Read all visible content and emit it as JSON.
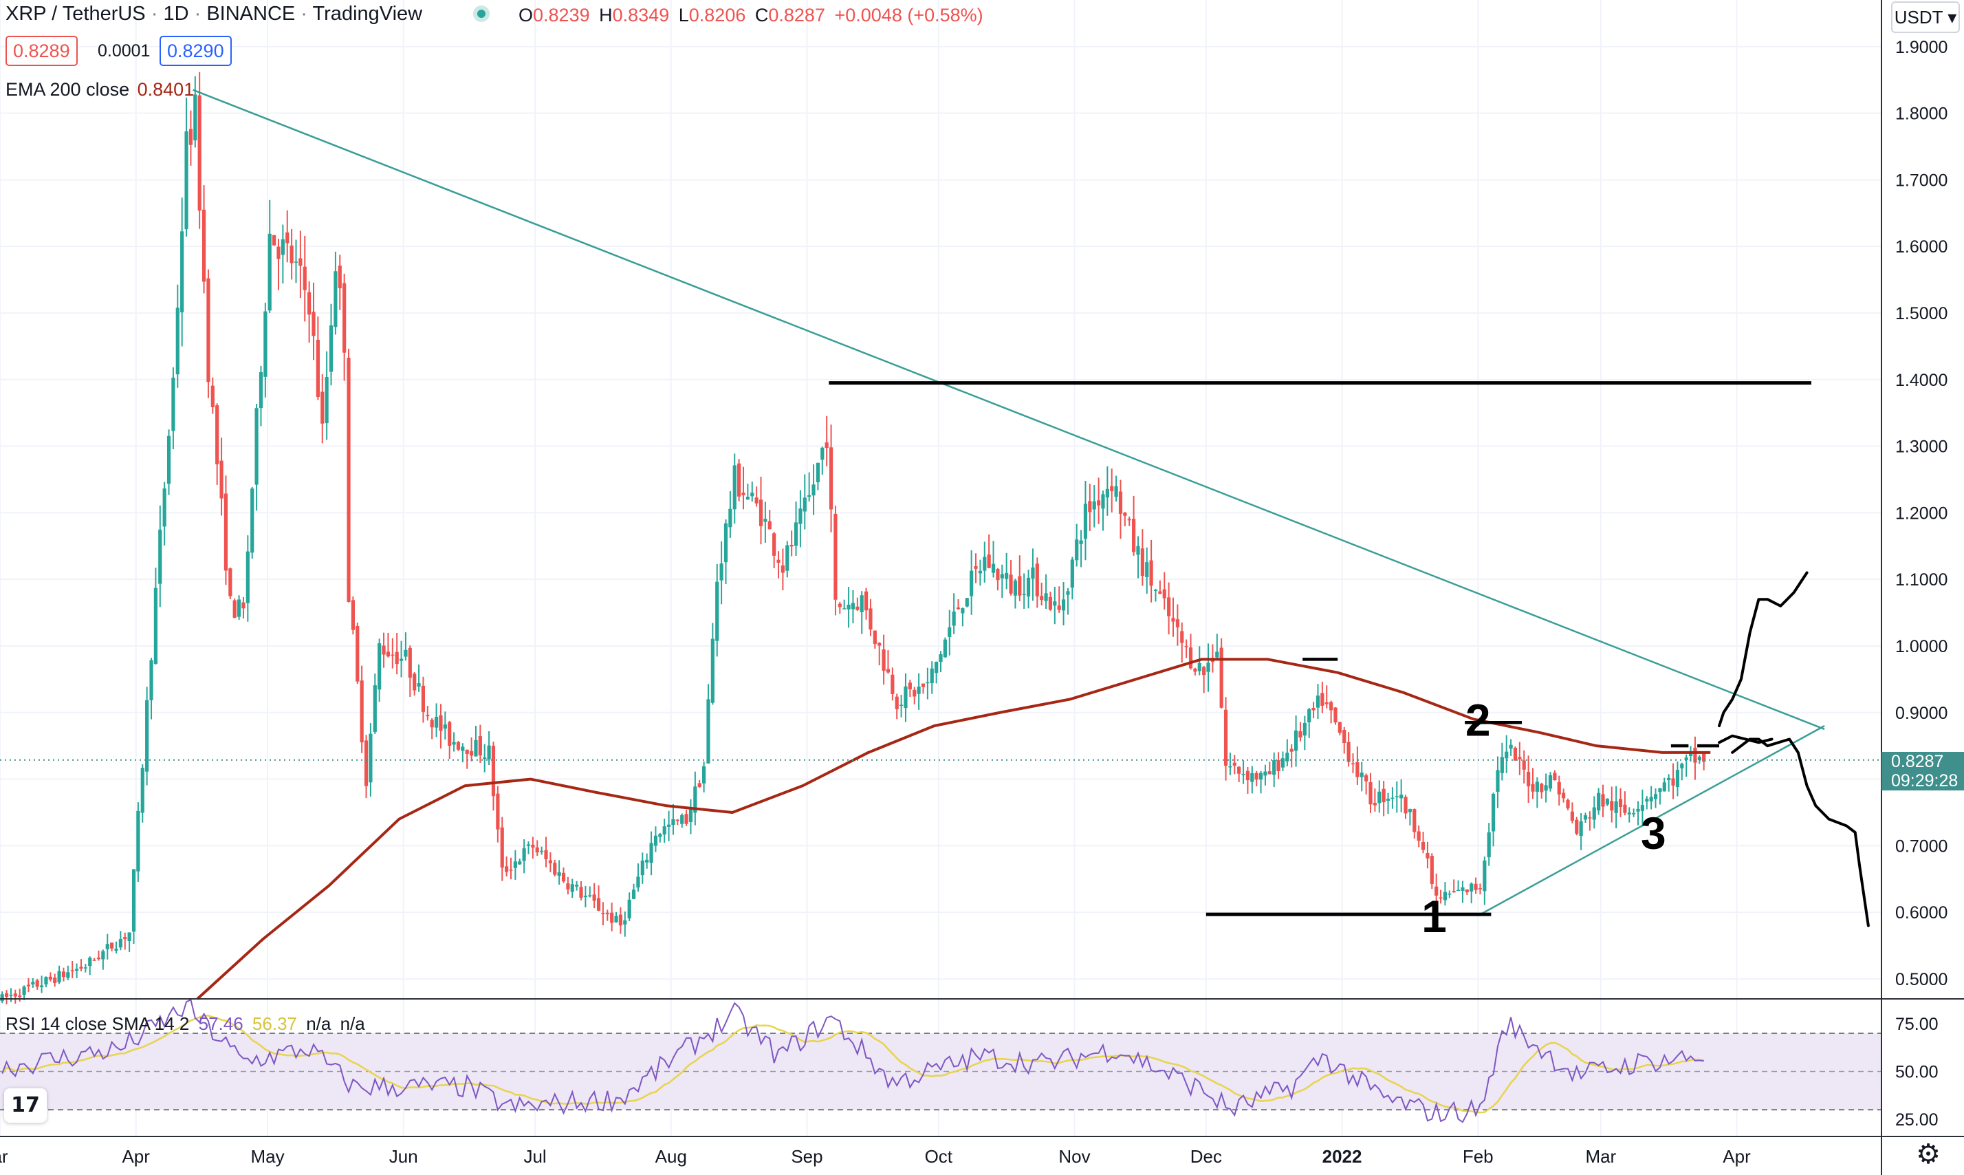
{
  "header": {
    "symbol": "XRP / TetherUS",
    "interval": "1D",
    "exchange": "BINANCE",
    "platform": "TradingView",
    "dot_sep": "·",
    "ohlc": [
      {
        "key": "O",
        "value": "0.8239"
      },
      {
        "key": "H",
        "value": "0.8349"
      },
      {
        "key": "L",
        "value": "0.8206"
      },
      {
        "key": "C",
        "value": "0.8287"
      }
    ],
    "change": "+0.0048 (+0.58%)"
  },
  "quote": {
    "bid": "0.8289",
    "spread": "0.0001",
    "ask": "0.8290"
  },
  "ema": {
    "label": "EMA 200 close",
    "value": "0.8401"
  },
  "rsi": {
    "label": "RSI 14 close SMA 14 2",
    "value": "57.46",
    "sma": "56.37",
    "na1": "n/a",
    "na2": "n/a"
  },
  "currency_select": "USDT ▾",
  "last_price": {
    "value": "0.8287",
    "countdown": "09:29:28"
  },
  "colors": {
    "up": "#26a69a",
    "down": "#ef5350",
    "ema": "#a52714",
    "trend": "#3a9e96",
    "rsi": "#7e57c2",
    "rsi_sma": "#e8d44d",
    "rsi_band": "#ede7f6",
    "grid": "#f0f3fa"
  },
  "icons": {
    "logo": "tradingview-logo-icon",
    "settings": "gear-icon",
    "quote_status": "market-open-dot-icon"
  },
  "logo_text": "17",
  "chart_data": {
    "type": "candlestick",
    "x_axis": {
      "labels": [
        "ar",
        "Apr",
        "May",
        "Jun",
        "Jul",
        "Aug",
        "Sep",
        "Oct",
        "Nov",
        "Dec",
        "2022",
        "Feb",
        "Mar",
        "Apr"
      ],
      "dates": [
        "2021-03-01",
        "2021-04-01",
        "2021-05-01",
        "2021-06-01",
        "2021-07-01",
        "2021-08-01",
        "2021-09-01",
        "2021-10-01",
        "2021-11-01",
        "2021-12-01",
        "2022-01-01",
        "2022-02-01",
        "2022-03-01",
        "2022-04-01"
      ],
      "range": [
        "2021-03-01",
        "2022-05-04"
      ]
    },
    "y_axis": {
      "ticks": [
        0.5,
        0.6,
        0.7,
        0.8,
        0.9,
        1.0,
        1.1,
        1.2,
        1.3,
        1.4,
        1.5,
        1.6,
        1.7,
        1.8,
        1.9
      ],
      "tick_labels": [
        "0.5000",
        "0.6000",
        "0.7000",
        "0.8000",
        "0.9000",
        "1.0000",
        "1.1000",
        "1.2000",
        "1.3000",
        "1.4000",
        "1.5000",
        "1.6000",
        "1.7000",
        "1.8000",
        "1.9000"
      ],
      "range": [
        0.47,
        1.97
      ]
    },
    "price_anchors": [
      [
        "2021-03-01",
        0.47
      ],
      [
        "2021-03-20",
        0.52
      ],
      [
        "2021-03-30",
        0.57
      ],
      [
        "2021-04-05",
        1.08
      ],
      [
        "2021-04-09",
        1.4
      ],
      [
        "2021-04-12",
        1.75
      ],
      [
        "2021-04-14",
        1.8
      ],
      [
        "2021-04-17",
        1.42
      ],
      [
        "2021-04-22",
        1.06
      ],
      [
        "2021-04-25",
        1.05
      ],
      [
        "2021-05-01",
        1.62
      ],
      [
        "2021-05-06",
        1.58
      ],
      [
        "2021-05-10",
        1.52
      ],
      [
        "2021-05-13",
        1.32
      ],
      [
        "2021-05-16",
        1.58
      ],
      [
        "2021-05-18",
        1.46
      ],
      [
        "2021-05-19",
        1.08
      ],
      [
        "2021-05-23",
        0.8
      ],
      [
        "2021-05-26",
        1.0
      ],
      [
        "2021-06-01",
        0.98
      ],
      [
        "2021-06-06",
        0.9
      ],
      [
        "2021-06-11",
        0.86
      ],
      [
        "2021-06-20",
        0.84
      ],
      [
        "2021-06-23",
        0.66
      ],
      [
        "2021-06-30",
        0.7
      ],
      [
        "2021-07-07",
        0.65
      ],
      [
        "2021-07-20",
        0.58
      ],
      [
        "2021-07-28",
        0.72
      ],
      [
        "2021-08-04",
        0.74
      ],
      [
        "2021-08-08",
        0.82
      ],
      [
        "2021-08-11",
        1.1
      ],
      [
        "2021-08-15",
        1.25
      ],
      [
        "2021-08-21",
        1.2
      ],
      [
        "2021-08-26",
        1.12
      ],
      [
        "2021-09-01",
        1.22
      ],
      [
        "2021-09-05",
        1.32
      ],
      [
        "2021-09-07",
        1.06
      ],
      [
        "2021-09-13",
        1.07
      ],
      [
        "2021-09-21",
        0.92
      ],
      [
        "2021-09-28",
        0.94
      ],
      [
        "2021-10-05",
        1.06
      ],
      [
        "2021-10-11",
        1.13
      ],
      [
        "2021-10-17",
        1.09
      ],
      [
        "2021-10-22",
        1.1
      ],
      [
        "2021-10-28",
        1.05
      ],
      [
        "2021-11-03",
        1.2
      ],
      [
        "2021-11-09",
        1.25
      ],
      [
        "2021-11-14",
        1.15
      ],
      [
        "2021-11-20",
        1.07
      ],
      [
        "2021-11-26",
        0.99
      ],
      [
        "2021-11-30",
        0.96
      ],
      [
        "2021-12-03",
        1.0
      ],
      [
        "2021-12-05",
        0.82
      ],
      [
        "2021-12-14",
        0.8
      ],
      [
        "2021-12-20",
        0.85
      ],
      [
        "2021-12-27",
        0.92
      ],
      [
        "2022-01-02",
        0.84
      ],
      [
        "2022-01-07",
        0.77
      ],
      [
        "2022-01-13",
        0.78
      ],
      [
        "2022-01-18",
        0.72
      ],
      [
        "2022-01-22",
        0.62
      ],
      [
        "2022-02-01",
        0.64
      ],
      [
        "2022-02-05",
        0.82
      ],
      [
        "2022-02-08",
        0.84
      ],
      [
        "2022-02-13",
        0.79
      ],
      [
        "2022-02-18",
        0.8
      ],
      [
        "2022-02-23",
        0.72
      ],
      [
        "2022-02-28",
        0.77
      ],
      [
        "2022-03-06",
        0.75
      ],
      [
        "2022-03-12",
        0.78
      ],
      [
        "2022-03-17",
        0.8
      ],
      [
        "2022-03-21",
        0.83
      ],
      [
        "2022-03-24",
        0.83
      ]
    ],
    "ema_points": [
      [
        "2021-04-15",
        0.47
      ],
      [
        "2021-04-30",
        0.56
      ],
      [
        "2021-05-15",
        0.64
      ],
      [
        "2021-05-31",
        0.74
      ],
      [
        "2021-06-15",
        0.79
      ],
      [
        "2021-06-30",
        0.8
      ],
      [
        "2021-07-15",
        0.78
      ],
      [
        "2021-07-31",
        0.76
      ],
      [
        "2021-08-15",
        0.75
      ],
      [
        "2021-08-31",
        0.79
      ],
      [
        "2021-09-15",
        0.84
      ],
      [
        "2021-09-30",
        0.88
      ],
      [
        "2021-10-15",
        0.9
      ],
      [
        "2021-10-31",
        0.92
      ],
      [
        "2021-11-15",
        0.95
      ],
      [
        "2021-11-30",
        0.98
      ],
      [
        "2021-12-15",
        0.98
      ],
      [
        "2021-12-31",
        0.96
      ],
      [
        "2022-01-15",
        0.93
      ],
      [
        "2022-01-31",
        0.89
      ],
      [
        "2022-02-15",
        0.87
      ],
      [
        "2022-02-28",
        0.85
      ],
      [
        "2022-03-15",
        0.84
      ],
      [
        "2022-03-26",
        0.84
      ]
    ],
    "rsi_axis": {
      "ticks": [
        25,
        50,
        75
      ],
      "tick_labels": [
        "25.00",
        "50.00",
        "75.00"
      ],
      "bands": [
        30,
        70
      ],
      "range": [
        16,
        88
      ]
    },
    "rsi_anchors": [
      [
        "2021-03-01",
        52
      ],
      [
        "2021-03-28",
        62
      ],
      [
        "2021-04-12",
        84
      ],
      [
        "2021-04-25",
        55
      ],
      [
        "2021-05-10",
        62
      ],
      [
        "2021-05-20",
        42
      ],
      [
        "2021-06-15",
        42
      ],
      [
        "2021-06-25",
        31
      ],
      [
        "2021-07-20",
        36
      ],
      [
        "2021-07-28",
        50
      ],
      [
        "2021-08-15",
        80
      ],
      [
        "2021-08-25",
        58
      ],
      [
        "2021-09-06",
        78
      ],
      [
        "2021-09-20",
        44
      ],
      [
        "2021-10-10",
        58
      ],
      [
        "2021-10-25",
        54
      ],
      [
        "2021-11-10",
        62
      ],
      [
        "2021-11-30",
        40
      ],
      [
        "2021-12-06",
        30
      ],
      [
        "2021-12-20",
        42
      ],
      [
        "2021-12-27",
        58
      ],
      [
        "2022-01-10",
        36
      ],
      [
        "2022-01-22",
        28
      ],
      [
        "2022-02-01",
        30
      ],
      [
        "2022-02-07",
        75
      ],
      [
        "2022-02-23",
        48
      ],
      [
        "2022-03-10",
        55
      ],
      [
        "2022-03-24",
        58
      ]
    ],
    "current_price": 0.8287,
    "drawings": {
      "trendline_upper": [
        [
          "2021-04-14",
          1.835
        ],
        [
          "2022-04-21",
          0.875
        ]
      ],
      "trendline_lower": [
        [
          "2022-02-01",
          0.595
        ],
        [
          "2022-04-21",
          0.88
        ]
      ],
      "resistance": [
        [
          "2021-09-06",
          1.395
        ],
        [
          "2022-04-18",
          1.395
        ]
      ],
      "support": [
        [
          "2021-12-01",
          0.597
        ],
        [
          "2022-02-04",
          0.597
        ]
      ],
      "ticks": [
        [
          [
            "2021-12-23",
            0.98
          ],
          [
            "2021-12-31",
            0.98
          ]
        ],
        [
          [
            "2022-01-29",
            0.885
          ],
          [
            "2022-02-11",
            0.885
          ]
        ],
        [
          [
            "2022-03-17",
            0.85
          ],
          [
            "2022-03-21",
            0.85
          ]
        ],
        [
          [
            "2022-03-23",
            0.85
          ],
          [
            "2022-03-28",
            0.85
          ]
        ]
      ],
      "labels": [
        {
          "text": "1",
          "date": "2022-01-22",
          "price": 0.595
        },
        {
          "text": "2",
          "date": "2022-02-01",
          "price": 0.89
        },
        {
          "text": "3",
          "date": "2022-03-13",
          "price": 0.72
        }
      ],
      "scenario_up": [
        [
          "2022-03-28",
          0.88
        ],
        [
          "2022-03-29",
          0.9
        ],
        [
          "2022-03-31",
          0.92
        ],
        [
          "2022-04-02",
          0.95
        ],
        [
          "2022-04-04",
          1.02
        ],
        [
          "2022-04-06",
          1.07
        ],
        [
          "2022-04-08",
          1.07
        ],
        [
          "2022-04-11",
          1.06
        ],
        [
          "2022-04-14",
          1.08
        ],
        [
          "2022-04-17",
          1.11
        ]
      ],
      "scenario_down": [
        [
          "2022-03-31",
          0.84
        ],
        [
          "2022-04-04",
          0.86
        ],
        [
          "2022-04-06",
          0.86
        ],
        [
          "2022-04-08",
          0.85
        ],
        [
          "2022-04-13",
          0.86
        ],
        [
          "2022-04-15",
          0.84
        ],
        [
          "2022-04-17",
          0.79
        ],
        [
          "2022-04-19",
          0.76
        ],
        [
          "2022-04-22",
          0.74
        ],
        [
          "2022-04-26",
          0.73
        ],
        [
          "2022-04-28",
          0.72
        ],
        [
          "2022-04-29",
          0.67
        ],
        [
          "2022-05-01",
          0.58
        ]
      ],
      "scenario_wave": [
        [
          "2022-03-28",
          0.855
        ],
        [
          "2022-03-31",
          0.865
        ],
        [
          "2022-04-03",
          0.86
        ],
        [
          "2022-04-06",
          0.855
        ],
        [
          "2022-04-09",
          0.86
        ]
      ]
    }
  }
}
